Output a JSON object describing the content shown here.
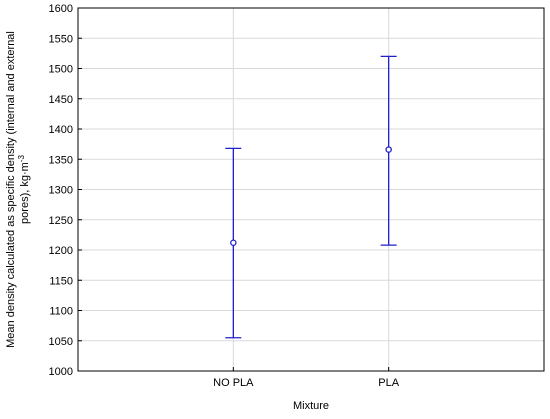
{
  "chart_data": {
    "type": "scatter",
    "subtype": "mean-with-error-bars",
    "categories": [
      "NO PLA",
      "PLA"
    ],
    "series": [
      {
        "values": [
          1212,
          1366
        ],
        "lower": [
          1055,
          1208
        ],
        "upper": [
          1368,
          1520
        ]
      }
    ],
    "xlabel": "Mixture",
    "ylabel_lines": [
      "Mean density calculated as specific density (internal and external",
      "pores), kg·m"
    ],
    "ylabel_superscript": "-3",
    "ylim": [
      1000,
      1600
    ],
    "yticks": [
      1000,
      1050,
      1100,
      1150,
      1200,
      1250,
      1300,
      1350,
      1400,
      1450,
      1500,
      1550,
      1600
    ],
    "grid": true,
    "colors": {
      "series": "#1f1fcf",
      "grid": "#d9d9d9",
      "frame": "#000000"
    }
  }
}
